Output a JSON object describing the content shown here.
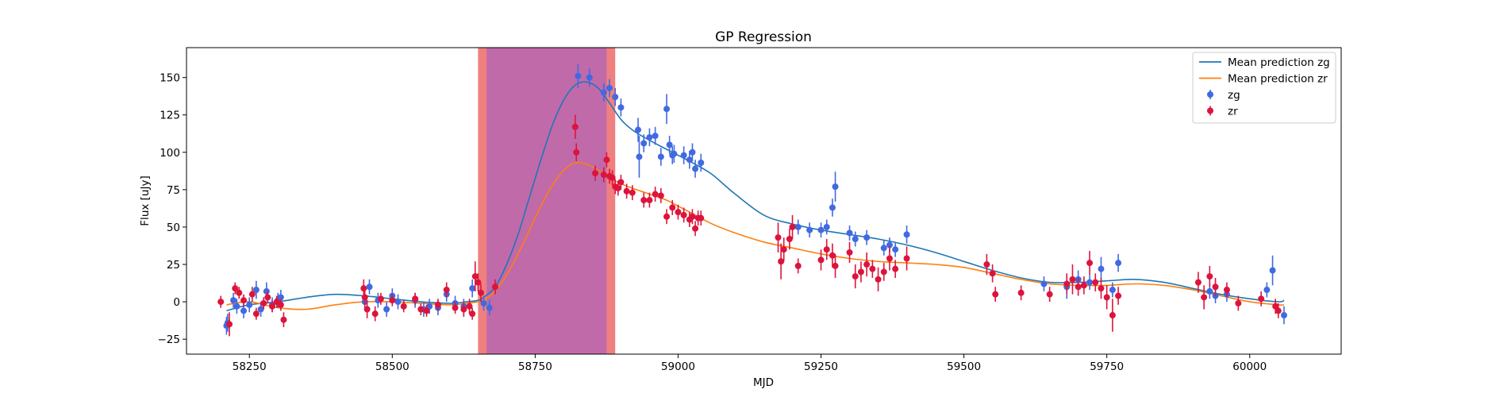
{
  "chart_data": {
    "type": "scatter",
    "title": "GP Regression",
    "xlabel": "MJD",
    "ylabel": "Flux [uJy]",
    "xlim": [
      58140,
      60160
    ],
    "ylim": [
      -35,
      170
    ],
    "xticks": [
      58250,
      58500,
      58750,
      59000,
      59250,
      59500,
      59750,
      60000
    ],
    "yticks": [
      -25,
      0,
      25,
      50,
      75,
      100,
      125,
      150
    ],
    "grid": false,
    "legend_position": "top-right",
    "shaded_regions": [
      {
        "x0": 58650,
        "x1": 58890,
        "color": "#f08080"
      },
      {
        "x0": 58665,
        "x1": 58875,
        "color": "#c06aaa"
      }
    ],
    "lines": [
      {
        "name": "Mean prediction zg",
        "color": "#1f77b4",
        "x": [
          58210,
          58250,
          58300,
          58350,
          58400,
          58450,
          58500,
          58550,
          58600,
          58630,
          58650,
          58660,
          58680,
          58700,
          58720,
          58740,
          58760,
          58780,
          58800,
          58820,
          58840,
          58860,
          58880,
          58900,
          58920,
          58950,
          58980,
          59000,
          59030,
          59060,
          59100,
          59150,
          59200,
          59250,
          59300,
          59350,
          59400,
          59450,
          59500,
          59550,
          59600,
          59650,
          59700,
          59750,
          59800,
          59850,
          59900,
          59950,
          60000,
          60050,
          60060
        ],
        "y": [
          -6,
          -2,
          0,
          3,
          5,
          4,
          2,
          0,
          -1,
          0,
          1,
          3,
          10,
          25,
          45,
          70,
          95,
          118,
          135,
          145,
          147,
          143,
          133,
          122,
          115,
          108,
          102,
          98,
          92,
          85,
          72,
          58,
          52,
          48,
          45,
          42,
          38,
          33,
          27,
          21,
          16,
          13,
          13,
          14,
          15,
          13,
          9,
          5,
          2,
          0,
          1
        ]
      },
      {
        "name": "Mean prediction zr",
        "color": "#ff7f0e",
        "x": [
          58210,
          58250,
          58300,
          58350,
          58400,
          58450,
          58500,
          58550,
          58600,
          58630,
          58650,
          58660,
          58680,
          58700,
          58720,
          58740,
          58760,
          58780,
          58800,
          58820,
          58840,
          58860,
          58880,
          58900,
          58920,
          58950,
          58980,
          59000,
          59030,
          59060,
          59100,
          59150,
          59200,
          59250,
          59300,
          59350,
          59400,
          59450,
          59500,
          59550,
          59600,
          59650,
          59700,
          59750,
          59800,
          59850,
          59900,
          59950,
          60000,
          60050,
          60060
        ],
        "y": [
          -2,
          0,
          -4,
          -5,
          -2,
          0,
          0,
          -1,
          -2,
          -1,
          0,
          1,
          7,
          18,
          32,
          48,
          64,
          78,
          88,
          93,
          92,
          88,
          83,
          79,
          76,
          72,
          68,
          64,
          58,
          52,
          46,
          40,
          36,
          32,
          29,
          27,
          26,
          25,
          23,
          19,
          15,
          12,
          11,
          11,
          12,
          11,
          8,
          4,
          0,
          -2,
          -2
        ]
      }
    ],
    "series": [
      {
        "name": "zg",
        "color": "#4169e1",
        "x": [
          58210,
          58212,
          58222,
          58228,
          58240,
          58250,
          58262,
          58270,
          58280,
          58290,
          58300,
          58305,
          58452,
          58460,
          58475,
          58490,
          58500,
          58510,
          58540,
          58555,
          58565,
          58580,
          58595,
          58610,
          58625,
          58640,
          58660,
          58670,
          58825,
          58845,
          58870,
          58880,
          58890,
          58900,
          58930,
          58932,
          58940,
          58950,
          58960,
          58970,
          58980,
          58985,
          58990,
          58993,
          59010,
          59020,
          59025,
          59030,
          59040,
          59210,
          59230,
          59250,
          59260,
          59270,
          59275,
          59300,
          59310,
          59330,
          59360,
          59370,
          59380,
          59400,
          59640,
          59680,
          59700,
          59720,
          59740,
          59760,
          59770,
          59930,
          59940,
          59960,
          60030,
          60040,
          60060
        ],
        "y": [
          -16,
          -14,
          1,
          -3,
          -6,
          -2,
          8,
          -5,
          7,
          -2,
          1,
          3,
          0,
          10,
          1,
          -5,
          4,
          0,
          1,
          -5,
          -3,
          -4,
          5,
          -1,
          -3,
          9,
          -1,
          -4,
          151,
          150,
          140,
          143,
          137,
          130,
          115,
          97,
          106,
          110,
          111,
          97,
          129,
          105,
          98,
          99,
          98,
          95,
          100,
          89,
          93,
          50,
          48,
          48,
          50,
          63,
          77,
          46,
          42,
          43,
          36,
          38,
          35,
          45,
          12,
          10,
          15,
          13,
          22,
          8,
          26,
          7,
          4,
          5,
          8,
          21,
          -9
        ],
        "yerr": [
          6,
          6,
          5,
          5,
          5,
          5,
          6,
          5,
          6,
          5,
          5,
          5,
          5,
          5,
          5,
          5,
          5,
          5,
          5,
          5,
          5,
          5,
          5,
          5,
          5,
          6,
          5,
          5,
          8,
          6,
          6,
          6,
          6,
          6,
          8,
          14,
          6,
          6,
          6,
          6,
          10,
          6,
          6,
          6,
          6,
          6,
          6,
          6,
          6,
          5,
          5,
          5,
          5,
          6,
          10,
          5,
          5,
          5,
          5,
          5,
          5,
          6,
          5,
          8,
          6,
          5,
          8,
          5,
          6,
          5,
          5,
          5,
          5,
          10,
          6
        ]
      },
      {
        "name": "zr",
        "color": "#dc143c",
        "x": [
          58200,
          58215,
          58225,
          58232,
          58240,
          58255,
          58262,
          58275,
          58282,
          58290,
          58298,
          58305,
          58310,
          58450,
          58452,
          58456,
          58470,
          58480,
          58500,
          58520,
          58540,
          58550,
          58560,
          58580,
          58595,
          58610,
          58625,
          58635,
          58640,
          58645,
          58650,
          58655,
          58680,
          58820,
          58822,
          58855,
          58870,
          58875,
          58880,
          58885,
          58890,
          58895,
          58900,
          58910,
          58920,
          58940,
          58950,
          58960,
          58970,
          58980,
          58990,
          59000,
          59010,
          59020,
          59025,
          59030,
          59035,
          59040,
          59175,
          59180,
          59185,
          59195,
          59200,
          59210,
          59250,
          59260,
          59270,
          59275,
          59300,
          59310,
          59320,
          59330,
          59340,
          59350,
          59360,
          59370,
          59380,
          59400,
          59540,
          59550,
          59555,
          59600,
          59650,
          59680,
          59690,
          59700,
          59710,
          59720,
          59730,
          59740,
          59750,
          59760,
          59770,
          59910,
          59920,
          59930,
          59940,
          59960,
          59980,
          60020,
          60045,
          60050
        ],
        "y": [
          0,
          -15,
          9,
          6,
          1,
          5,
          -8,
          -1,
          3,
          -3,
          0,
          -2,
          -12,
          9,
          3,
          -5,
          -8,
          2,
          1,
          -3,
          2,
          -5,
          -6,
          -2,
          8,
          -4,
          -5,
          -3,
          -8,
          17,
          13,
          6,
          10,
          117,
          100,
          86,
          85,
          95,
          84,
          83,
          77,
          76,
          80,
          74,
          73,
          68,
          68,
          72,
          71,
          57,
          63,
          60,
          58,
          55,
          57,
          49,
          56,
          56,
          43,
          27,
          35,
          42,
          50,
          24,
          28,
          35,
          31,
          24,
          33,
          17,
          20,
          25,
          22,
          15,
          20,
          29,
          22,
          29,
          25,
          19,
          5,
          6,
          5,
          12,
          15,
          10,
          11,
          26,
          13,
          9,
          3,
          -9,
          4,
          13,
          3,
          17,
          10,
          8,
          -1,
          2,
          -3,
          -6
        ],
        "yerr": [
          4,
          8,
          4,
          4,
          4,
          5,
          4,
          4,
          4,
          4,
          4,
          4,
          5,
          6,
          6,
          6,
          5,
          4,
          4,
          4,
          4,
          4,
          4,
          4,
          5,
          4,
          5,
          5,
          4,
          10,
          6,
          6,
          5,
          8,
          6,
          5,
          5,
          5,
          5,
          5,
          5,
          5,
          5,
          5,
          5,
          5,
          5,
          5,
          5,
          5,
          5,
          5,
          5,
          5,
          5,
          5,
          5,
          5,
          10,
          12,
          8,
          7,
          8,
          5,
          7,
          7,
          8,
          8,
          7,
          8,
          7,
          8,
          6,
          8,
          6,
          8,
          6,
          8,
          7,
          6,
          5,
          5,
          5,
          7,
          10,
          6,
          6,
          8,
          6,
          7,
          8,
          11,
          6,
          7,
          8,
          7,
          6,
          5,
          5,
          5,
          5,
          5
        ]
      }
    ],
    "legend": [
      {
        "label": "Mean prediction zg",
        "kind": "line",
        "color": "#1f77b4"
      },
      {
        "label": "Mean prediction zr",
        "kind": "line",
        "color": "#ff7f0e"
      },
      {
        "label": "zg",
        "kind": "marker",
        "color": "#4169e1"
      },
      {
        "label": "zr",
        "kind": "marker",
        "color": "#dc143c"
      }
    ]
  }
}
